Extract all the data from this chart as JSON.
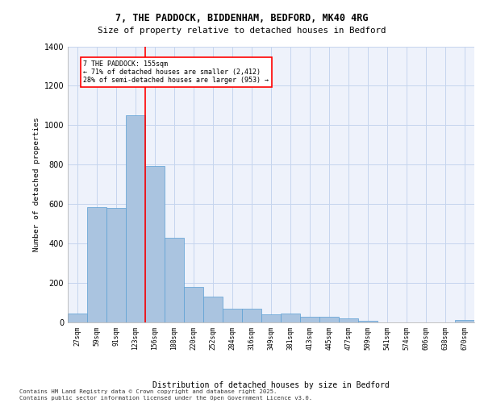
{
  "title_line1": "7, THE PADDOCK, BIDDENHAM, BEDFORD, MK40 4RG",
  "title_line2": "Size of property relative to detached houses in Bedford",
  "xlabel": "Distribution of detached houses by size in Bedford",
  "ylabel": "Number of detached properties",
  "categories": [
    "27sqm",
    "59sqm",
    "91sqm",
    "123sqm",
    "156sqm",
    "188sqm",
    "220sqm",
    "252sqm",
    "284sqm",
    "316sqm",
    "349sqm",
    "381sqm",
    "413sqm",
    "445sqm",
    "477sqm",
    "509sqm",
    "541sqm",
    "574sqm",
    "606sqm",
    "638sqm",
    "670sqm"
  ],
  "values": [
    45,
    585,
    580,
    1050,
    795,
    430,
    180,
    130,
    70,
    68,
    40,
    45,
    28,
    28,
    20,
    10,
    0,
    0,
    0,
    0,
    12
  ],
  "bar_color": "#aac4e0",
  "bar_edge_color": "#5a9fd4",
  "red_line_index": 4,
  "annotation_title": "7 THE PADDOCK: 155sqm",
  "annotation_line2": "← 71% of detached houses are smaller (2,412)",
  "annotation_line3": "28% of semi-detached houses are larger (953) →",
  "footer_line1": "Contains HM Land Registry data © Crown copyright and database right 2025.",
  "footer_line2": "Contains public sector information licensed under the Open Government Licence v3.0.",
  "ylim_max": 1400,
  "background_color": "#eef2fb",
  "grid_color": "#c5d5ee"
}
